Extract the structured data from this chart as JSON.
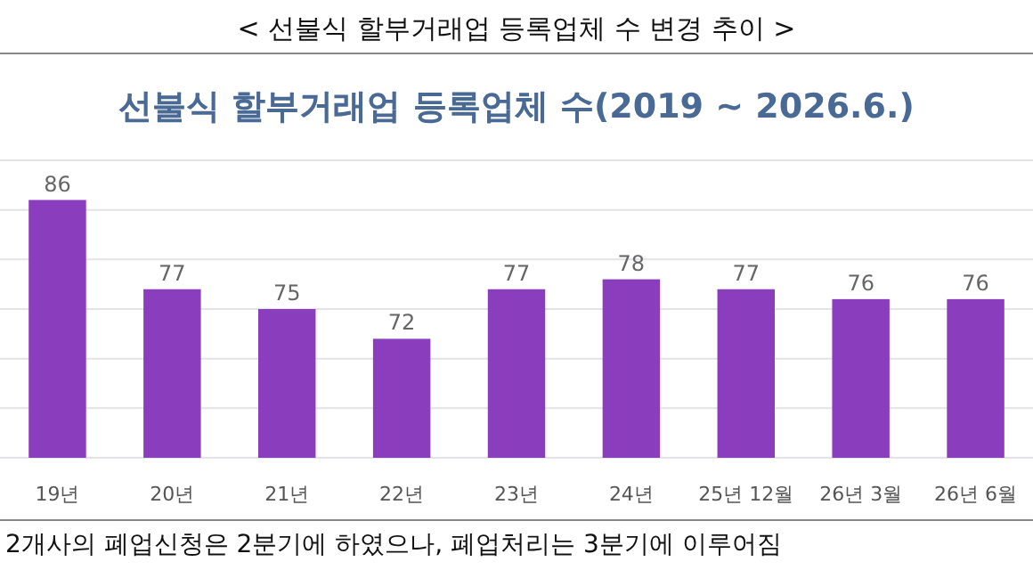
{
  "chart_data": {
    "type": "bar",
    "title": "< 선불식 할부거래업 등록업체 수 변경 추이 >",
    "subtitle": "선불식 할부거래업 등록업체 수(2019 ~ 2026.6.)",
    "categories": [
      "19년",
      "20년",
      "21년",
      "22년",
      "23년",
      "24년",
      "25년 12월",
      "26년 3월",
      "26년 6월"
    ],
    "values": [
      86,
      77,
      75,
      72,
      77,
      78,
      77,
      76,
      76
    ],
    "color": "#8a3dbd",
    "ylim": [
      60,
      90
    ],
    "yticks": [
      {
        "value": 60,
        "label": null
      },
      {
        "value": 65,
        "label": null
      },
      {
        "value": 70,
        "label": null
      },
      {
        "value": 75,
        "label": null
      },
      {
        "value": 80,
        "label": null
      },
      {
        "value": 85,
        "label": null
      },
      {
        "value": 90,
        "label": null
      }
    ],
    "tick_labels": "x",
    "grid": "y",
    "data_labels": true,
    "annotations": [
      "2개사의 폐업신청은 2분기에 하였으나, 폐업처리는 3분기에 이루어짐"
    ]
  }
}
